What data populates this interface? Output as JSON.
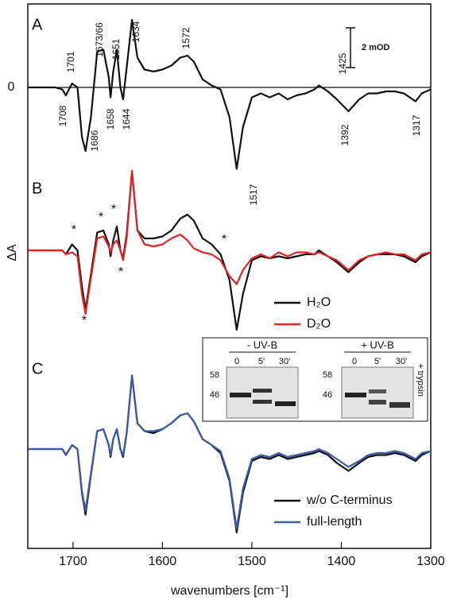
{
  "chart_data": [
    {
      "type": "line",
      "panel": "A",
      "x": [
        1750,
        1720,
        1712,
        1708,
        1701,
        1695,
        1690,
        1686,
        1680,
        1673,
        1666,
        1660,
        1658,
        1655,
        1651,
        1647,
        1644,
        1640,
        1634,
        1628,
        1620,
        1610,
        1600,
        1590,
        1580,
        1572,
        1565,
        1555,
        1545,
        1535,
        1525,
        1517,
        1510,
        1500,
        1490,
        1480,
        1470,
        1460,
        1450,
        1440,
        1430,
        1425,
        1415,
        1405,
        1392,
        1380,
        1370,
        1360,
        1350,
        1340,
        1330,
        1317,
        1310,
        1300
      ],
      "series": [
        {
          "color": "#111111",
          "values": [
            0,
            0,
            -0.1,
            -0.4,
            0.2,
            0,
            -2.5,
            -3.2,
            -1.5,
            1.8,
            1.9,
            0.5,
            -0.5,
            0.8,
            1.9,
            0,
            -0.6,
            1,
            3.4,
            1.5,
            0.9,
            0.8,
            0.9,
            1.1,
            1.5,
            1.6,
            1.3,
            0.4,
            0.1,
            -0.1,
            -1.5,
            -4.1,
            -2,
            -0.5,
            -0.3,
            -0.5,
            -0.3,
            -0.6,
            -0.4,
            -0.3,
            -0.1,
            0.1,
            -0.2,
            -0.6,
            -1.2,
            -0.6,
            -0.3,
            -0.3,
            -0.2,
            -0.2,
            -0.3,
            -0.7,
            -0.3,
            -0.1
          ]
        }
      ],
      "xlim": [
        1750,
        1300
      ],
      "ylim": [
        -4.6,
        4.2
      ],
      "yticks": [
        0
      ],
      "scale_bar": {
        "value": 2,
        "label": "2 mOD"
      },
      "peak_labels": [
        "1708",
        "1701",
        "1686",
        "1673/66",
        "1658",
        "1651",
        "1644",
        "1634",
        "1572",
        "1517",
        "1425",
        "1392",
        "1317"
      ]
    },
    {
      "type": "line",
      "panel": "B",
      "ylabel": "ΔA",
      "x": [
        1750,
        1720,
        1712,
        1708,
        1701,
        1695,
        1690,
        1686,
        1680,
        1673,
        1666,
        1660,
        1658,
        1655,
        1651,
        1647,
        1644,
        1640,
        1634,
        1628,
        1620,
        1610,
        1600,
        1590,
        1580,
        1572,
        1565,
        1555,
        1545,
        1535,
        1525,
        1517,
        1510,
        1500,
        1490,
        1480,
        1470,
        1460,
        1450,
        1440,
        1430,
        1425,
        1415,
        1405,
        1392,
        1380,
        1370,
        1360,
        1350,
        1340,
        1330,
        1317,
        1310,
        1300
      ],
      "series": [
        {
          "name": "H₂O",
          "color": "#111111",
          "values": [
            0,
            0,
            0,
            -0.2,
            0.3,
            0,
            -1.8,
            -3.0,
            -1.2,
            0.9,
            1.0,
            0.3,
            -0.3,
            0.5,
            1.2,
            0,
            -0.4,
            0.8,
            4.0,
            1.0,
            0.6,
            0.6,
            0.7,
            1.0,
            1.6,
            1.8,
            1.5,
            0.6,
            0.3,
            -0.2,
            -1.5,
            -4.0,
            -2.2,
            -0.5,
            -0.3,
            -0.4,
            -0.3,
            -0.4,
            -0.3,
            -0.2,
            -0.2,
            0,
            -0.3,
            -0.6,
            -1.1,
            -0.6,
            -0.3,
            -0.2,
            -0.2,
            -0.2,
            -0.3,
            -0.6,
            -0.3,
            -0.1
          ]
        },
        {
          "name": "D₂O",
          "color": "#e02424",
          "values": [
            0,
            0,
            0,
            -0.2,
            -0.1,
            -0.3,
            -2.2,
            -3.2,
            -1.4,
            0.6,
            0.7,
            0.2,
            -0.1,
            0.3,
            0.5,
            0,
            -0.5,
            0.6,
            4.0,
            1.0,
            0.3,
            0.2,
            0.3,
            0.6,
            0.8,
            0.5,
            0.1,
            -0.1,
            -0.2,
            -0.5,
            -1.3,
            -1.7,
            -1.0,
            -0.4,
            -0.2,
            -0.4,
            -0.1,
            -0.3,
            -0.1,
            -0.1,
            -0.2,
            -0.1,
            -0.3,
            -0.5,
            -1.0,
            -0.5,
            -0.3,
            -0.2,
            -0.1,
            -0.2,
            -0.2,
            -0.5,
            -0.2,
            -0.1
          ]
        }
      ],
      "xlim": [
        1750,
        1300
      ],
      "ylim": [
        -4.6,
        4.2
      ],
      "annotations": [
        "*",
        "*",
        "*",
        "*",
        "*",
        "*"
      ]
    },
    {
      "type": "line",
      "panel": "C",
      "x": [
        1750,
        1720,
        1712,
        1708,
        1701,
        1695,
        1690,
        1686,
        1680,
        1673,
        1666,
        1660,
        1658,
        1655,
        1651,
        1647,
        1644,
        1640,
        1634,
        1628,
        1620,
        1610,
        1600,
        1590,
        1580,
        1572,
        1565,
        1555,
        1545,
        1535,
        1525,
        1517,
        1510,
        1500,
        1490,
        1480,
        1470,
        1460,
        1450,
        1440,
        1430,
        1425,
        1415,
        1405,
        1392,
        1380,
        1370,
        1360,
        1350,
        1340,
        1330,
        1317,
        1310,
        1300
      ],
      "series": [
        {
          "name": "w/o C-terminus",
          "color": "#111111",
          "values": [
            0,
            0,
            0,
            -0.3,
            0.2,
            0,
            -2.2,
            -3.3,
            -1.3,
            0.9,
            1.0,
            0.2,
            -0.4,
            0.5,
            1.0,
            0,
            -0.4,
            0.8,
            3.7,
            1.3,
            0.9,
            0.8,
            1.0,
            1.3,
            1.7,
            1.8,
            1.4,
            0.5,
            0.2,
            -0.2,
            -1.6,
            -4.2,
            -2.2,
            -0.6,
            -0.4,
            -0.5,
            -0.3,
            -0.5,
            -0.4,
            -0.3,
            -0.2,
            -0.1,
            -0.3,
            -0.7,
            -1.1,
            -0.7,
            -0.4,
            -0.3,
            -0.3,
            -0.2,
            -0.3,
            -0.6,
            -0.3,
            -0.1
          ]
        },
        {
          "name": "full-length",
          "color": "#3b5ba8",
          "values": [
            0,
            0,
            0,
            -0.3,
            0.2,
            0,
            -2.1,
            -3.1,
            -1.2,
            0.9,
            1.0,
            0.2,
            -0.3,
            0.5,
            1.0,
            0,
            -0.3,
            0.8,
            3.7,
            1.3,
            0.9,
            0.9,
            1.0,
            1.3,
            1.7,
            1.8,
            1.4,
            0.5,
            0.2,
            -0.1,
            -1.5,
            -4.0,
            -2.0,
            -0.5,
            -0.3,
            -0.4,
            -0.2,
            -0.4,
            -0.3,
            -0.2,
            -0.1,
            0,
            -0.2,
            -0.5,
            -0.9,
            -0.6,
            -0.3,
            -0.2,
            -0.2,
            -0.1,
            -0.2,
            -0.5,
            -0.2,
            -0.1
          ]
        }
      ],
      "xlim": [
        1750,
        1300
      ],
      "ylim": [
        -4.6,
        4.2
      ],
      "xticks": [
        1700,
        1600,
        1500,
        1400,
        1300
      ],
      "xlabel": "wavenumbers [cm⁻¹]",
      "inset": {
        "left_title": "- UV-B",
        "right_title": "+ UV-B",
        "lanes": [
          "0",
          "5'",
          "30'"
        ],
        "markers": [
          "58",
          "46"
        ],
        "side_label": "+ trypsin"
      }
    }
  ]
}
